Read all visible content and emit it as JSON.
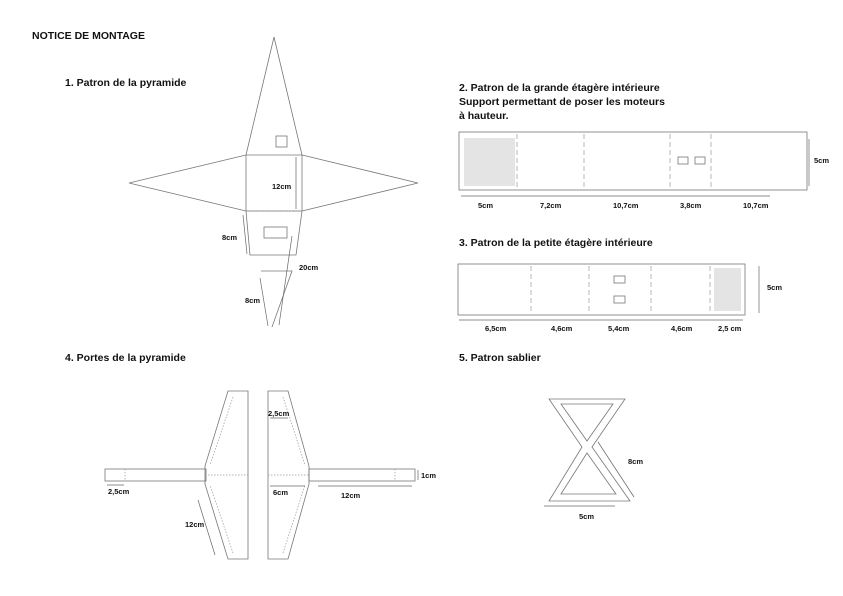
{
  "title": "NOTICE DE MONTAGE",
  "sections": {
    "s1": "1. Patron de la pyramide",
    "s2": [
      "2. Patron de la grande étagère intérieure",
      "Support permettant de poser les moteurs",
      "à hauteur."
    ],
    "s3": "3. Patron de la petite étagère intérieure",
    "s4": "4. Portes de la pyramide",
    "s5": "5. Patron sablier"
  },
  "pyramid": {
    "d12": "12cm",
    "d8": "8cm",
    "d20": "20cm",
    "d8b": "8cm"
  },
  "shelf_large": {
    "height": "5cm",
    "segments": [
      "5cm",
      "7,2cm",
      "10,7cm",
      "3,8cm",
      "10,7cm"
    ]
  },
  "shelf_small": {
    "height": "5cm",
    "segments": [
      "6,5cm",
      "4,6cm",
      "5,4cm",
      "4,6cm",
      "2,5 cm"
    ]
  },
  "doors": {
    "d25": "2,5cm",
    "d25_left": "2,5cm",
    "d1": "1cm",
    "d6": "6cm",
    "d12_right": "12cm",
    "d12_left": "12cm"
  },
  "hourglass": {
    "d8": "8cm",
    "d5": "5cm"
  },
  "colors": {
    "line": "#777777",
    "panel": "#e4e4e4"
  }
}
